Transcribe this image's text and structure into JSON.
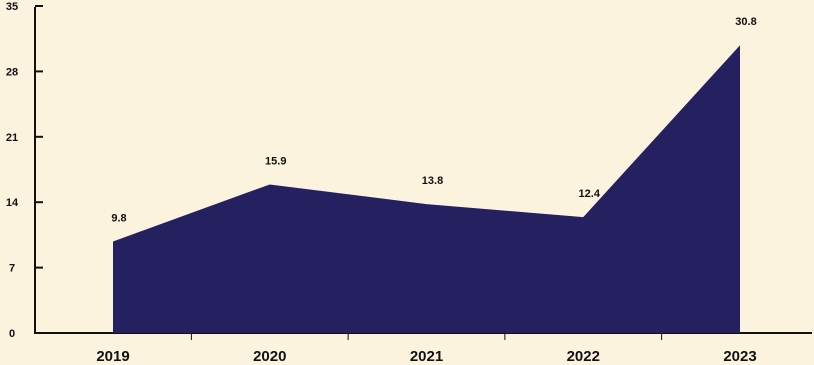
{
  "chart_data": {
    "type": "area",
    "categories": [
      "2019",
      "2020",
      "2021",
      "2022",
      "2023"
    ],
    "values": [
      9.8,
      15.9,
      13.8,
      12.4,
      30.8
    ],
    "value_labels": [
      "9.8",
      "15.9",
      "13.8",
      "12.4",
      "30.8"
    ],
    "ylim": [
      0,
      35
    ],
    "yticks": [
      0,
      7,
      14,
      21,
      28,
      35
    ],
    "grid": false,
    "title": "",
    "xlabel": "",
    "ylabel": ""
  },
  "colors": {
    "background": "#fcf3df",
    "area": "#252060",
    "axis": "#111111",
    "text": "#111111"
  }
}
